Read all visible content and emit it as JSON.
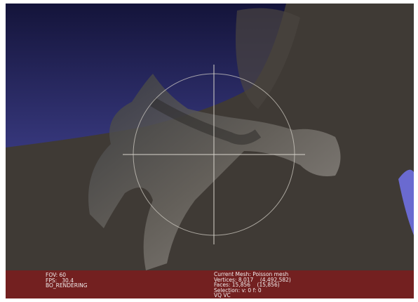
{
  "left_info": [
    "FOV: 60",
    "FPS:   30.4",
    "BO_RENDERING"
  ],
  "right_info": [
    "Current Mesh: Poisson mesh",
    "Vertices: 8,017    (4,492,582)",
    "Faces: 15,856    (15,856)",
    "Selection: v: 0 f: 0",
    "VQ VC"
  ]
}
